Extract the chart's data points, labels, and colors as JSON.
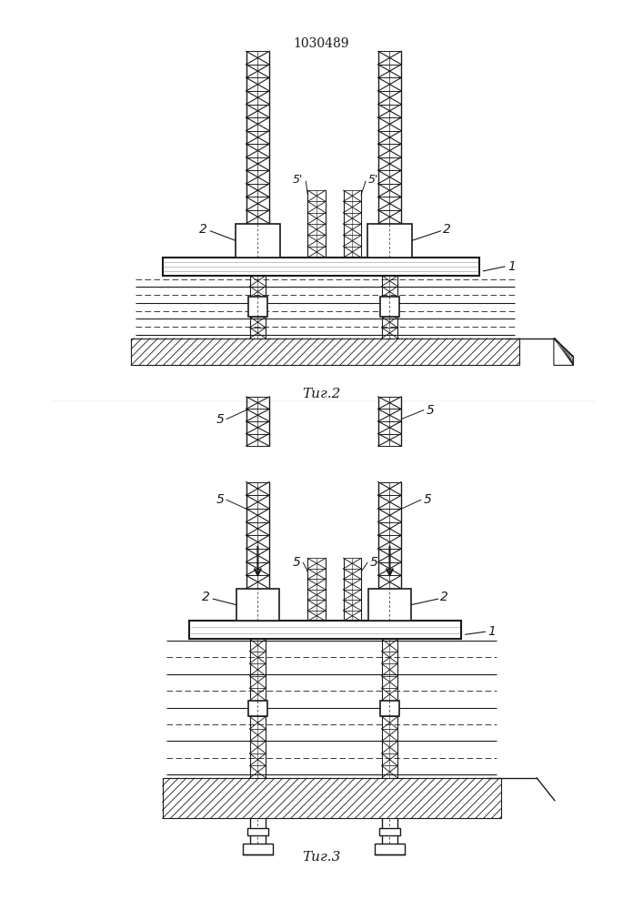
{
  "title": "1030489",
  "fig2_label": "Τиг.2",
  "fig3_label": "Τиг.3",
  "bg_color": "#ffffff",
  "line_color": "#1a1a1a"
}
